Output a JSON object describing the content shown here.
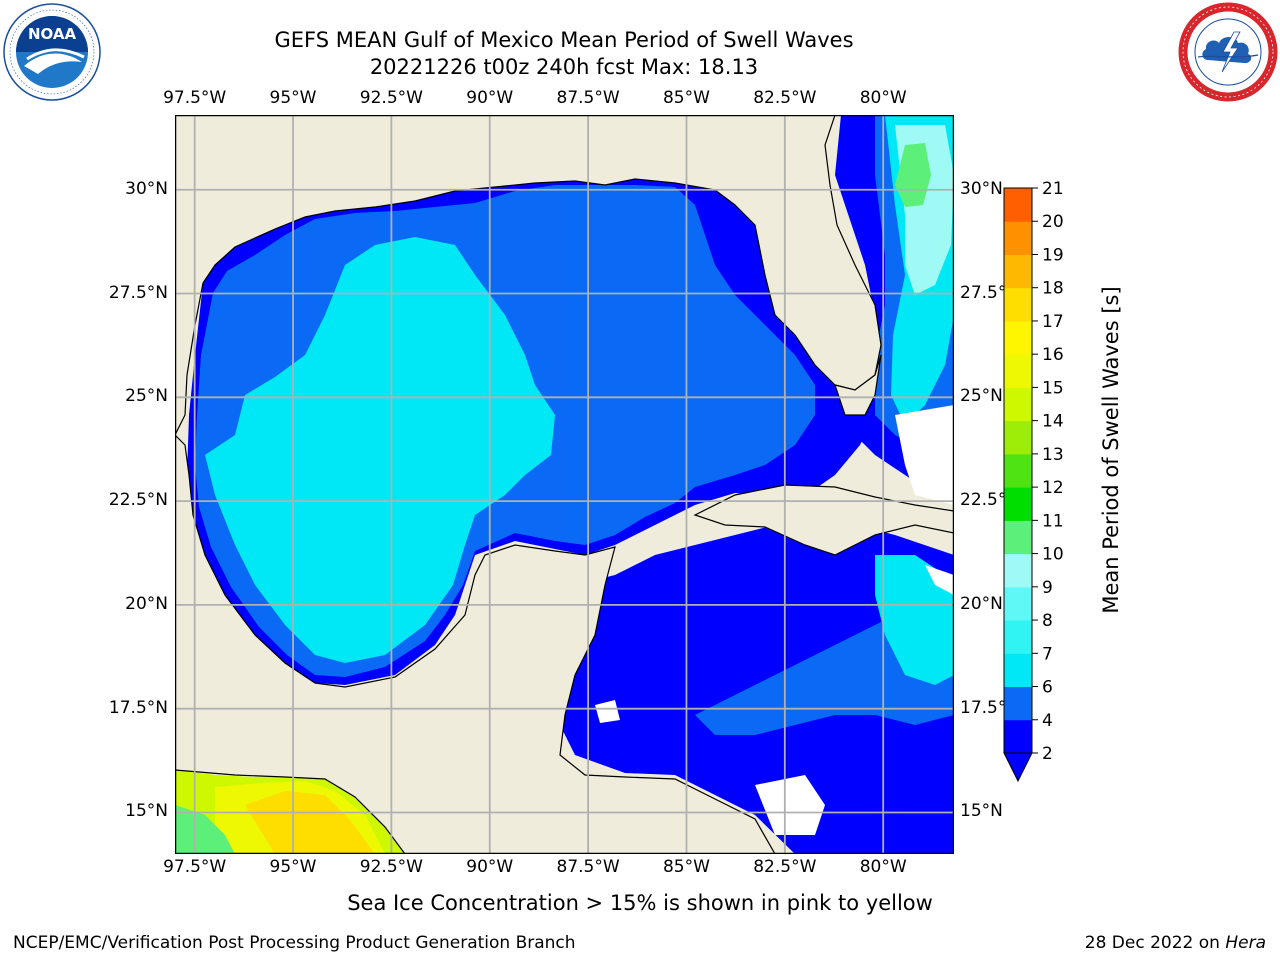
{
  "header": {
    "title_line1": "GEFS MEAN Gulf of Mexico Mean Period of Swell Waves",
    "title_line2": "20221226 t00z 240h fcst   Max: 18.13"
  },
  "logos": {
    "left": {
      "name": "NOAA",
      "text": "NOAA",
      "ring_text": "NATIONAL OCEANIC AND ATMOSPHERIC ADMINISTRATION · U.S. DEPARTMENT OF COMMERCE"
    },
    "right": {
      "name": "National Weather Service",
      "ring_text": "NATIONAL WEATHER SERVICE"
    }
  },
  "map": {
    "extent": {
      "lon_min": -98.0,
      "lon_max": -78.2,
      "lat_min": 14.0,
      "lat_max": 31.8
    },
    "lon_labels": [
      "97.5°W",
      "95°W",
      "92.5°W",
      "90°W",
      "87.5°W",
      "85°W",
      "82.5°W",
      "80°W"
    ],
    "lat_labels": [
      "30°N",
      "27.5°N",
      "25°N",
      "22.5°N",
      "20°N",
      "17.5°N",
      "15°N"
    ],
    "land_color": "#efecdc",
    "grid_color": "#b0b0b0"
  },
  "colorbar": {
    "label": "Mean Period of Swell Waves [s]",
    "levels": [
      "2",
      "4",
      "6",
      "7",
      "8",
      "9",
      "10",
      "11",
      "12",
      "13",
      "14",
      "15",
      "16",
      "17",
      "18",
      "19",
      "20",
      "21"
    ],
    "colors": [
      "#0000ff",
      "#0a6af6",
      "#00e8f6",
      "#30f4f4",
      "#60f8f6",
      "#9ff9f4",
      "#5cf07a",
      "#00de00",
      "#4fe314",
      "#9ded08",
      "#cdf800",
      "#eef800",
      "#fef600",
      "#fedd00",
      "#fdb800",
      "#ff9000",
      "#ff5f00",
      "#ff2a00",
      "#ff0000"
    ],
    "under_color": "#0000ff"
  },
  "note": "Sea Ice Concentration > 15% is shown in pink to yellow",
  "footer": {
    "left": "NCEP/EMC/Verification Post Processing Product Generation Branch",
    "right_prefix": "28 Dec 2022 on ",
    "right_host": "Hera"
  }
}
